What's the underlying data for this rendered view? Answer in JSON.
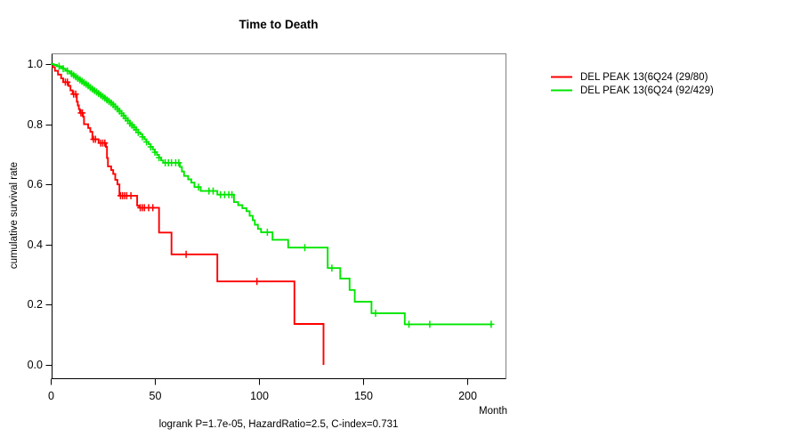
{
  "chart_data": {
    "type": "line",
    "subtype": "kaplan-meier-survival",
    "title": "Time to Death",
    "xlabel": "Month",
    "ylabel": "cumulative survival rate",
    "annotation": "logrank P=1.7e-05, HazardRatio=2.5, C-index=0.731",
    "xlim": [
      0,
      218
    ],
    "ylim": [
      0.0,
      1.0
    ],
    "xticks": [
      0,
      50,
      100,
      150,
      200
    ],
    "yticks": [
      0.0,
      0.2,
      0.4,
      0.6,
      0.8,
      1.0
    ],
    "grid": false,
    "legend_position": "right-outside",
    "axis_color": "#000000",
    "box_color": "#808080",
    "series": [
      {
        "name": "DEL PEAK 13(6Q24 (29/80)",
        "color": "#FF0000",
        "end_time": 131,
        "steps": [
          [
            0,
            1.0
          ],
          [
            1,
            0.99
          ],
          [
            2,
            0.9775
          ],
          [
            3.5,
            0.965
          ],
          [
            5,
            0.9525
          ],
          [
            6,
            0.94
          ],
          [
            8.5,
            0.9275
          ],
          [
            9.5,
            0.9125
          ],
          [
            10.5,
            0.9
          ],
          [
            12.5,
            0.875
          ],
          [
            13,
            0.8625
          ],
          [
            13.5,
            0.85
          ],
          [
            14,
            0.8375
          ],
          [
            15.5,
            0.825
          ],
          [
            16,
            0.8
          ],
          [
            18,
            0.7875
          ],
          [
            19,
            0.775
          ],
          [
            20,
            0.75
          ],
          [
            23,
            0.7375
          ],
          [
            26.5,
            0.725
          ],
          [
            27,
            0.6875
          ],
          [
            27.5,
            0.66
          ],
          [
            29,
            0.6475
          ],
          [
            30,
            0.635
          ],
          [
            31,
            0.615
          ],
          [
            32,
            0.6
          ],
          [
            33,
            0.5625
          ],
          [
            41.5,
            0.53
          ],
          [
            42.5,
            0.5225
          ],
          [
            52,
            0.44
          ],
          [
            58,
            0.3675
          ],
          [
            80,
            0.2775
          ],
          [
            117,
            0.136
          ],
          [
            131,
            0.0
          ]
        ],
        "censor_times": [
          7,
          8,
          11,
          12,
          14.5,
          15.2,
          20.5,
          21.5,
          24,
          25,
          26,
          33.5,
          34.5,
          35.5,
          36.5,
          38.5,
          43,
          44,
          45,
          47,
          49,
          65,
          99
        ]
      },
      {
        "name": "DEL PEAK 13(6Q24 (92/429)",
        "color": "#00E600",
        "end_time": 212,
        "steps": [
          [
            0,
            1.0
          ],
          [
            1.5,
            0.997
          ],
          [
            3,
            0.993
          ],
          [
            4.5,
            0.99
          ],
          [
            6,
            0.985
          ],
          [
            7,
            0.981
          ],
          [
            8,
            0.977
          ],
          [
            9,
            0.973
          ],
          [
            10,
            0.968
          ],
          [
            11,
            0.963
          ],
          [
            12,
            0.958
          ],
          [
            13,
            0.953
          ],
          [
            14,
            0.948
          ],
          [
            15,
            0.943
          ],
          [
            16,
            0.938
          ],
          [
            17,
            0.933
          ],
          [
            18,
            0.928
          ],
          [
            19,
            0.922
          ],
          [
            20,
            0.917
          ],
          [
            21,
            0.912
          ],
          [
            22,
            0.907
          ],
          [
            23,
            0.902
          ],
          [
            24,
            0.897
          ],
          [
            25,
            0.892
          ],
          [
            26,
            0.887
          ],
          [
            27,
            0.881
          ],
          [
            28,
            0.876
          ],
          [
            29,
            0.871
          ],
          [
            30,
            0.865
          ],
          [
            31,
            0.858
          ],
          [
            32,
            0.851
          ],
          [
            33,
            0.844
          ],
          [
            34,
            0.836
          ],
          [
            35,
            0.828
          ],
          [
            36,
            0.82
          ],
          [
            37,
            0.812
          ],
          [
            38,
            0.803
          ],
          [
            39,
            0.797
          ],
          [
            40,
            0.79
          ],
          [
            41,
            0.782
          ],
          [
            42,
            0.773
          ],
          [
            43,
            0.767
          ],
          [
            44,
            0.758
          ],
          [
            45,
            0.75
          ],
          [
            46,
            0.741
          ],
          [
            47,
            0.734
          ],
          [
            48,
            0.725
          ],
          [
            49,
            0.716
          ],
          [
            50,
            0.707
          ],
          [
            51,
            0.698
          ],
          [
            52,
            0.689
          ],
          [
            53,
            0.68
          ],
          [
            54,
            0.672
          ],
          [
            62,
            0.658
          ],
          [
            63,
            0.643
          ],
          [
            64,
            0.628
          ],
          [
            66,
            0.617
          ],
          [
            67.5,
            0.606
          ],
          [
            69,
            0.591
          ],
          [
            72,
            0.578
          ],
          [
            80,
            0.566
          ],
          [
            88,
            0.541
          ],
          [
            90,
            0.531
          ],
          [
            92,
            0.521
          ],
          [
            94,
            0.511
          ],
          [
            95.5,
            0.496
          ],
          [
            97,
            0.481
          ],
          [
            98,
            0.466
          ],
          [
            99.5,
            0.452
          ],
          [
            101,
            0.441
          ],
          [
            106.5,
            0.416
          ],
          [
            114,
            0.39
          ],
          [
            133,
            0.322
          ],
          [
            139,
            0.287
          ],
          [
            143.5,
            0.249
          ],
          [
            146,
            0.21
          ],
          [
            154,
            0.172
          ],
          [
            170,
            0.135
          ]
        ],
        "censor_times": [
          4,
          6,
          8,
          10,
          11,
          12,
          13,
          14,
          15,
          16,
          17,
          18,
          19,
          20,
          21,
          22,
          23,
          24,
          25,
          26,
          27,
          28,
          29,
          30,
          31,
          32,
          33,
          34,
          35,
          36,
          37,
          38,
          39,
          40,
          41,
          42,
          44,
          46,
          48,
          50,
          52,
          55,
          56.5,
          58,
          60,
          61.5,
          71,
          76,
          78,
          81.5,
          83.5,
          85.5,
          87,
          104,
          122,
          135,
          156,
          172,
          182,
          211.5
        ]
      }
    ]
  }
}
